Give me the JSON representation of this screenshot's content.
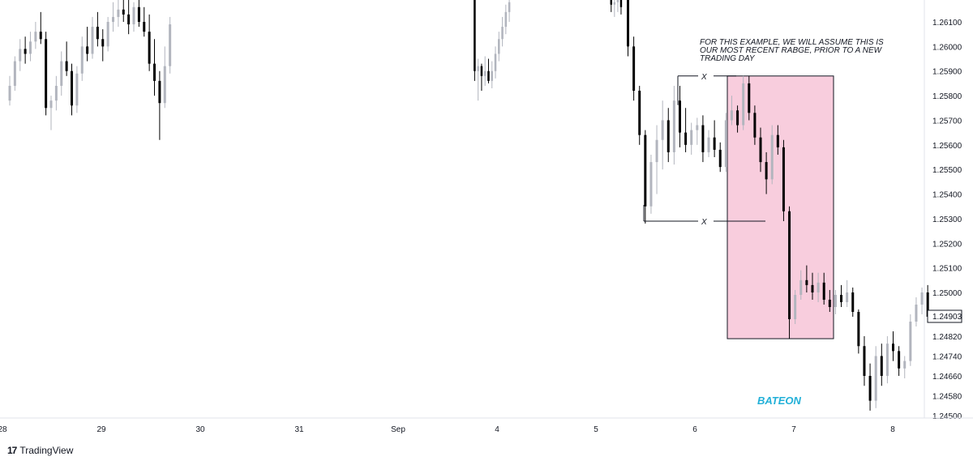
{
  "chart_data": {
    "type": "candlestick",
    "platform": "TradingView",
    "y_axis": {
      "ticks": [
        "1.26100",
        "1.26000",
        "1.25900",
        "1.25800",
        "1.25700",
        "1.25600",
        "1.25500",
        "1.25400",
        "1.25300",
        "1.25200",
        "1.25100",
        "1.25000",
        "1.24820",
        "1.24740",
        "1.24660",
        "1.24580",
        "1.24500"
      ],
      "tick_values": [
        1.261,
        1.26,
        1.259,
        1.258,
        1.257,
        1.256,
        1.255,
        1.254,
        1.253,
        1.252,
        1.251,
        1.25,
        1.2482,
        1.2474,
        1.2466,
        1.2458,
        1.245
      ]
    },
    "x_axis": {
      "labels": [
        "28",
        "29",
        "30",
        "31",
        "Sep",
        "4",
        "5",
        "6",
        "7",
        "8"
      ]
    },
    "last_price": "1.24903",
    "annotation": "FOR THIS EXAMPLE, WE WILL ASSUME THIS IS OUR MOST RECENT RABGE, PRIOR TO A NEW TRADING DAY",
    "annotation_lines": [
      "FOR THIS EXAMPLE, WE WILL ASSUME THIS IS",
      "OUR MOST RECENT RABGE, PRIOR TO A NEW",
      "TRADING DAY"
    ],
    "range_markers": [
      "X",
      "X"
    ],
    "range_high": 1.2588,
    "range_low": 1.2529,
    "box_top": 1.2588,
    "box_bottom": 1.2481,
    "watermark": "BATEON",
    "colors": {
      "up": "#b2b5be",
      "down": "#000000",
      "box_fill": "#f8cddd",
      "box_stroke": "#131722",
      "watermark": "#22b0d8"
    },
    "segments": [
      {
        "from_day": 0,
        "to_day": 1.62,
        "candles": [
          [
            1.2578,
            1.2588,
            1.2576,
            1.2584
          ],
          [
            1.2584,
            1.2596,
            1.2582,
            1.2594
          ],
          [
            1.2594,
            1.2603,
            1.259,
            1.2599
          ],
          [
            1.2599,
            1.2604,
            1.2593,
            1.2597
          ],
          [
            1.2597,
            1.2606,
            1.2594,
            1.2602
          ],
          [
            1.2602,
            1.261,
            1.2599,
            1.2606
          ],
          [
            1.2606,
            1.2614,
            1.2601,
            1.2603
          ],
          [
            1.2603,
            1.2606,
            1.2572,
            1.2575
          ],
          [
            1.2575,
            1.258,
            1.2566,
            1.2578
          ],
          [
            1.2578,
            1.2588,
            1.2574,
            1.2584
          ],
          [
            1.2584,
            1.2598,
            1.258,
            1.2594
          ],
          [
            1.2594,
            1.2602,
            1.2588,
            1.259
          ],
          [
            1.259,
            1.2593,
            1.2572,
            1.2576
          ],
          [
            1.2576,
            1.2592,
            1.2573,
            1.2589
          ],
          [
            1.2589,
            1.2604,
            1.2586,
            1.26
          ],
          [
            1.26,
            1.2608,
            1.2594,
            1.2597
          ],
          [
            1.2597,
            1.2612,
            1.2595,
            1.2608
          ],
          [
            1.2608,
            1.2614,
            1.26,
            1.2603
          ],
          [
            1.2603,
            1.2607,
            1.2594,
            1.26
          ],
          [
            1.26,
            1.2612,
            1.2598,
            1.261
          ],
          [
            1.261,
            1.2618,
            1.2606,
            1.2612
          ],
          [
            1.2612,
            1.262,
            1.2608,
            1.2615
          ],
          [
            1.2615,
            1.262,
            1.261,
            1.2613
          ],
          [
            1.2613,
            1.2619,
            1.2605,
            1.2609
          ],
          [
            1.2609,
            1.2618,
            1.2606,
            1.2616
          ],
          [
            1.2616,
            1.262,
            1.2608,
            1.261
          ],
          [
            1.261,
            1.2616,
            1.2604,
            1.2606
          ],
          [
            1.2606,
            1.2613,
            1.259,
            1.2593
          ],
          [
            1.2593,
            1.2603,
            1.258,
            1.2586
          ],
          [
            1.2586,
            1.259,
            1.2562,
            1.2577
          ],
          [
            1.2577,
            1.26,
            1.2575,
            1.2592
          ],
          [
            1.2592,
            1.2612,
            1.2589,
            1.2609
          ]
        ]
      },
      {
        "from_day": 4.7,
        "to_day": 5.05,
        "candles": [
          [
            1.262,
            1.262,
            1.2586,
            1.259
          ],
          [
            1.259,
            1.2595,
            1.2578,
            1.2592
          ],
          [
            1.2592,
            1.2593,
            1.2582,
            1.2588
          ],
          [
            1.2588,
            1.2596,
            1.2584,
            1.259
          ],
          [
            1.259,
            1.2595,
            1.2585,
            1.2586
          ],
          [
            1.2586,
            1.2594,
            1.2583,
            1.259
          ],
          [
            1.259,
            1.26,
            1.2587,
            1.2597
          ],
          [
            1.2597,
            1.2606,
            1.2594,
            1.2603
          ],
          [
            1.2603,
            1.2612,
            1.26,
            1.2608
          ],
          [
            1.2608,
            1.2617,
            1.2605,
            1.2614
          ],
          [
            1.2614,
            1.262,
            1.261,
            1.2618
          ]
        ]
      },
      {
        "from_day": 6.08,
        "to_day": 6.18,
        "candles": [
          [
            1.262,
            1.262,
            1.2614,
            1.2617
          ],
          [
            1.2617,
            1.262,
            1.2612,
            1.2618
          ],
          [
            1.2618,
            1.262,
            1.2614,
            1.2619
          ],
          [
            1.2619,
            1.262,
            1.2613,
            1.2616
          ]
        ]
      },
      {
        "from_day": 6.25,
        "to_day": 9.28,
        "candles": [
          [
            1.262,
            1.262,
            1.2596,
            1.26
          ],
          [
            1.26,
            1.2604,
            1.2578,
            1.2582
          ],
          [
            1.2582,
            1.2584,
            1.256,
            1.2564
          ],
          [
            1.2564,
            1.2566,
            1.2528,
            1.2535
          ],
          [
            1.2535,
            1.2556,
            1.2532,
            1.2553
          ],
          [
            1.2553,
            1.2568,
            1.254,
            1.2562
          ],
          [
            1.2562,
            1.2578,
            1.255,
            1.257
          ],
          [
            1.257,
            1.2575,
            1.2553,
            1.2557
          ],
          [
            1.2557,
            1.2584,
            1.2552,
            1.2578
          ],
          [
            1.2578,
            1.2584,
            1.2559,
            1.2565
          ],
          [
            1.2565,
            1.2575,
            1.2557,
            1.256
          ],
          [
            1.256,
            1.2569,
            1.2556,
            1.2566
          ],
          [
            1.2566,
            1.2571,
            1.256,
            1.2568
          ],
          [
            1.2568,
            1.2572,
            1.2553,
            1.2557
          ],
          [
            1.2557,
            1.2566,
            1.2555,
            1.2563
          ],
          [
            1.2563,
            1.257,
            1.2555,
            1.2558
          ],
          [
            1.2558,
            1.2561,
            1.2549,
            1.2551
          ],
          [
            1.2551,
            1.2573,
            1.2549,
            1.257
          ],
          [
            1.257,
            1.258,
            1.2568,
            1.2574
          ],
          [
            1.2574,
            1.2576,
            1.2565,
            1.2568
          ],
          [
            1.2568,
            1.2588,
            1.2566,
            1.2585
          ],
          [
            1.2585,
            1.2588,
            1.257,
            1.2573
          ],
          [
            1.2573,
            1.2576,
            1.256,
            1.2563
          ],
          [
            1.2563,
            1.2567,
            1.2549,
            1.2553
          ],
          [
            1.2553,
            1.2557,
            1.254,
            1.2546
          ],
          [
            1.2546,
            1.2568,
            1.2544,
            1.2564
          ],
          [
            1.2564,
            1.2568,
            1.2556,
            1.2559
          ],
          [
            1.2559,
            1.2562,
            1.2529,
            1.2533
          ],
          [
            1.2533,
            1.2535,
            1.2481,
            1.2489
          ],
          [
            1.2489,
            1.2501,
            1.2487,
            1.2499
          ],
          [
            1.2499,
            1.2509,
            1.2497,
            1.2505
          ],
          [
            1.2505,
            1.2511,
            1.25,
            1.2503
          ],
          [
            1.2503,
            1.2508,
            1.2497,
            1.25
          ],
          [
            1.25,
            1.2508,
            1.2496,
            1.2504
          ],
          [
            1.2504,
            1.2508,
            1.2495,
            1.2497
          ],
          [
            1.2497,
            1.2501,
            1.2492,
            1.2494
          ],
          [
            1.2494,
            1.2501,
            1.2491,
            1.2499
          ],
          [
            1.2499,
            1.2503,
            1.2494,
            1.2496
          ],
          [
            1.2496,
            1.2505,
            1.2494,
            1.25
          ],
          [
            1.25,
            1.2502,
            1.249,
            1.2492
          ],
          [
            1.2492,
            1.2493,
            1.2475,
            1.2478
          ],
          [
            1.2478,
            1.2482,
            1.2462,
            1.2466
          ],
          [
            1.2466,
            1.2471,
            1.2452,
            1.2456
          ],
          [
            1.2456,
            1.2478,
            1.2453,
            1.2474
          ],
          [
            1.2474,
            1.2479,
            1.2462,
            1.2466
          ],
          [
            1.2466,
            1.2482,
            1.2463,
            1.2479
          ],
          [
            1.2479,
            1.2484,
            1.2472,
            1.2476
          ],
          [
            1.2476,
            1.2478,
            1.2466,
            1.2469
          ],
          [
            1.2469,
            1.2474,
            1.2465,
            1.2472
          ],
          [
            1.2472,
            1.2491,
            1.247,
            1.2488
          ],
          [
            1.2488,
            1.2498,
            1.2486,
            1.2495
          ],
          [
            1.2495,
            1.2502,
            1.2491,
            1.25
          ],
          [
            1.25,
            1.2503,
            1.2488,
            1.249
          ]
        ]
      }
    ]
  },
  "footer": {
    "logo_mark": "17",
    "brand_name": "TradingView"
  }
}
